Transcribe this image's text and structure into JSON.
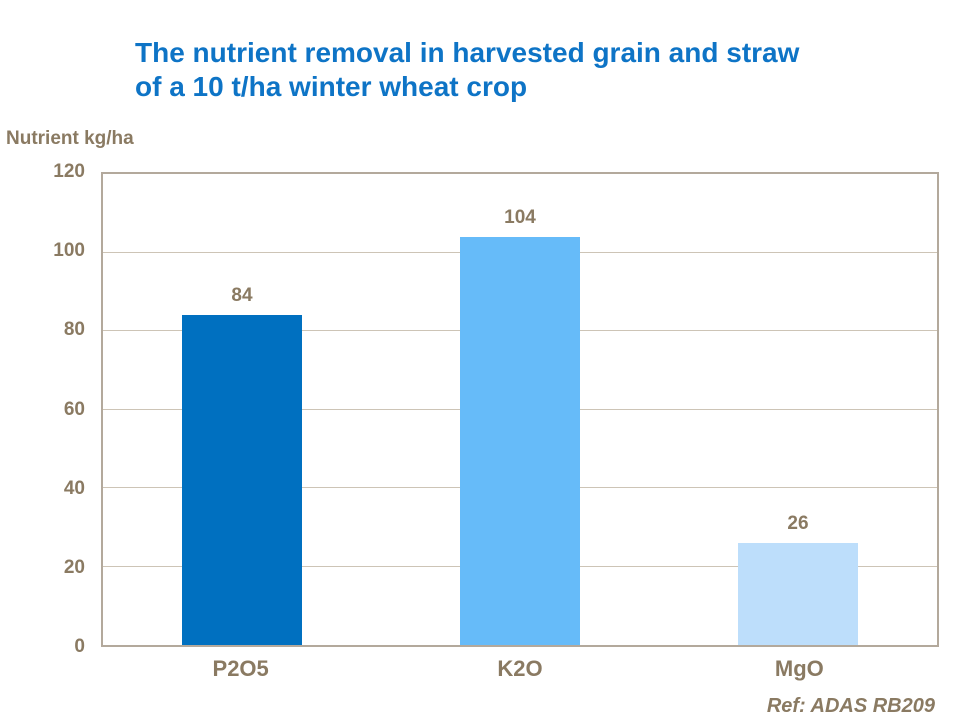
{
  "title": {
    "lines": [
      "The nutrient removal in harvested grain and straw",
      "of a 10 t/ha winter wheat crop"
    ]
  },
  "y_axis_title": "Nutrient kg/ha",
  "ref_note": "Ref: ADAS RB209",
  "colors": {
    "title_blue": "#0e74c6",
    "label_brown": "#8a7a62",
    "frame": "#b3a99c",
    "gridline": "#cdc4b6",
    "bar_colors": [
      "#0070c0",
      "#66bbf9",
      "#bddefb"
    ]
  },
  "chart_data": {
    "type": "bar",
    "title": "The nutrient removal in harvested grain and straw of a 10 t/ha winter wheat crop",
    "categories": [
      "P2O5",
      "K2O",
      "MgO"
    ],
    "values": [
      84,
      104,
      26
    ],
    "xlabel": "",
    "ylabel": "Nutrient kg/ha",
    "ylim": [
      0,
      120
    ],
    "yticks": [
      0,
      20,
      40,
      60,
      80,
      100,
      120
    ],
    "grid": true,
    "legend": false,
    "data_labels": [
      84,
      104,
      26
    ],
    "annotation": "Ref: ADAS RB209"
  }
}
